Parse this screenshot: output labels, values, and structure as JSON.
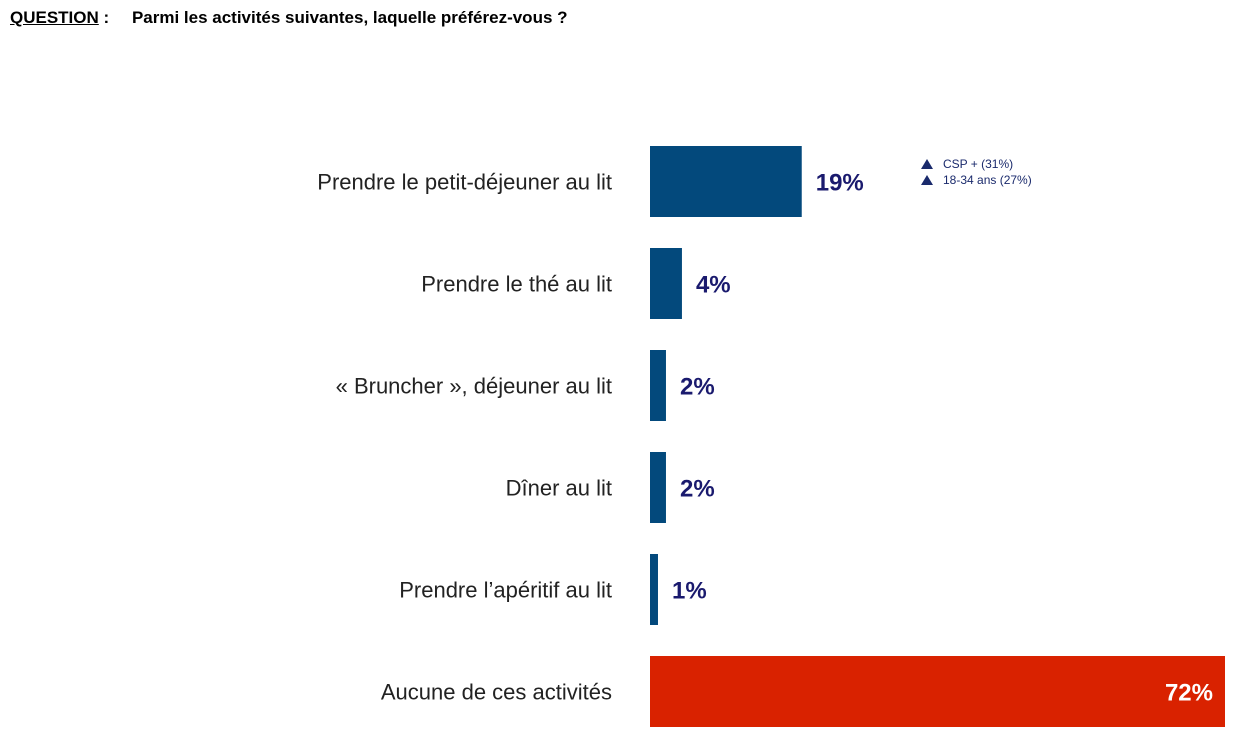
{
  "question": {
    "label": "QUESTION",
    "separator": ":",
    "text": "Parmi les activités suivantes, laquelle préférez-vous ?"
  },
  "notes": [
    {
      "icon": "triangle-up-icon",
      "text": "CSP + (31%)"
    },
    {
      "icon": "triangle-up-icon",
      "text": "18-34 ans (27%)"
    }
  ],
  "colors": {
    "bar": "#03497c",
    "highlight_bar": "#d92200",
    "value_text": "#1a1a6e",
    "highlight_value_text": "#ffffff",
    "category_text": "#222222"
  },
  "chart_data": {
    "type": "bar",
    "orientation": "horizontal",
    "categories": [
      "Prendre le petit-déjeuner au lit",
      "Prendre le thé au lit",
      "« Bruncher », déjeuner au lit",
      "Dîner au lit",
      "Prendre l’apéritif au lit",
      "Aucune de ces activités"
    ],
    "values": [
      19,
      4,
      2,
      2,
      1,
      72
    ],
    "value_labels": [
      "19%",
      "4%",
      "2%",
      "2%",
      "1%",
      "72%"
    ],
    "highlight_index": 5,
    "unit": "%",
    "xlim": [
      0,
      72
    ],
    "grid": false,
    "legend": "none"
  }
}
